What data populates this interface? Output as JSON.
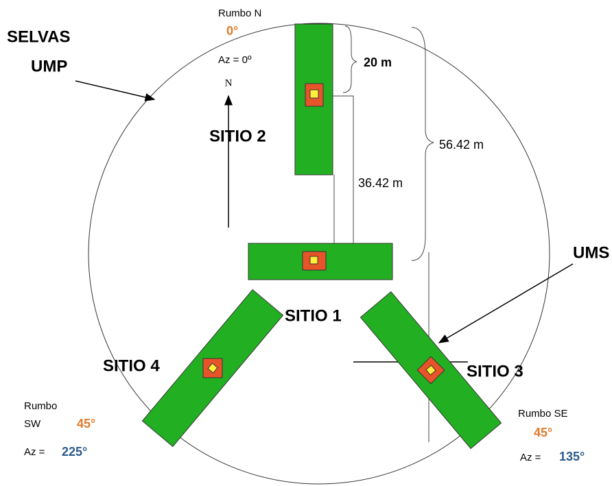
{
  "labels": {
    "selvas": "SELVAS",
    "ump": "UMP",
    "rumbo_n": "Rumbo N",
    "deg_n": "0°",
    "az_n": "Az = 0º",
    "north": "N",
    "sitio2": "SITIO 2",
    "d20": "20 m",
    "d5642": "56.42 m",
    "d3642": "36.42 m",
    "ums": "UMS",
    "sitio1": "SITIO 1",
    "sitio4": "SITIO 4",
    "sitio3": "SITIO 3",
    "rumbo_sw1": "Rumbo",
    "rumbo_sw2": "SW",
    "deg_sw": "45°",
    "az_sw": "Az =",
    "az_sw_val": "225°",
    "rumbo_se": "Rumbo SE",
    "deg_se": "45°",
    "az_se": "Az =",
    "az_se_val": "135°"
  }
}
